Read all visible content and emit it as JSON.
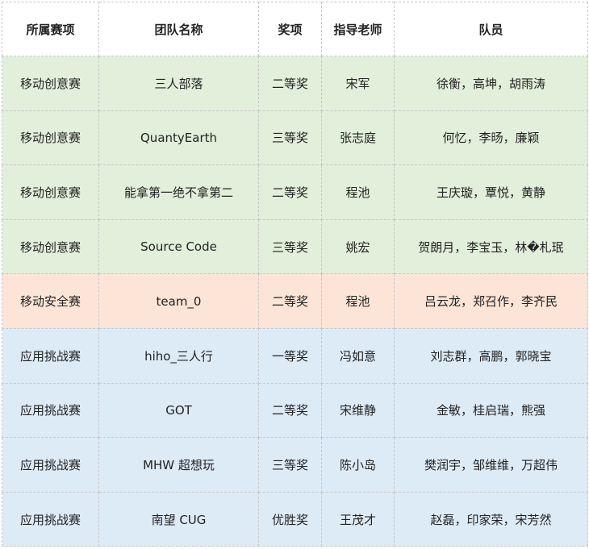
{
  "headers": [
    "所属赛项",
    "团队名称",
    "奖项",
    "指导老师",
    "队员"
  ],
  "colors": {
    "mobile_creative": "#e2efda",
    "mobile_security": "#fce4d6",
    "app_challenge": "#ddebf7"
  },
  "rows": [
    [
      "移动创意赛",
      "三人部落",
      "二等奖",
      "宋军",
      "徐衡，高坤，胡雨涛"
    ],
    [
      "移动创意赛",
      "QuantyEarth",
      "三等奖",
      "张志庭",
      "何忆，李旸，廉颖"
    ],
    [
      "移动创意赛",
      "能拿第一绝不拿第二",
      "二等奖",
      "程池",
      "王庆璇，覃悦，黄静"
    ],
    [
      "移动创意赛",
      "Source Code",
      "三等奖",
      "姚宏",
      "贺朗月，李宝玉，林�札珉"
    ],
    [
      "移动安全赛",
      "team_0",
      "二等奖",
      "程池",
      "吕云龙，郑召作，李齐民"
    ],
    [
      "应用挑战赛",
      "hiho_三人行",
      "一等奖",
      "冯如意",
      "刘志群，高鹏，郭晓宝"
    ],
    [
      "应用挑战赛",
      "GOT",
      "二等奖",
      "宋维静",
      "金敏，桂启瑞，熊强"
    ],
    [
      "应用挑战赛",
      "MHW 超想玩",
      "三等奖",
      "陈小岛",
      "樊润宇，邹维维，万超伟"
    ],
    [
      "应用挑战赛",
      "南望 CUG",
      "优胜奖",
      "王茂才",
      "赵磊，印家荣，宋芳然"
    ]
  ]
}
